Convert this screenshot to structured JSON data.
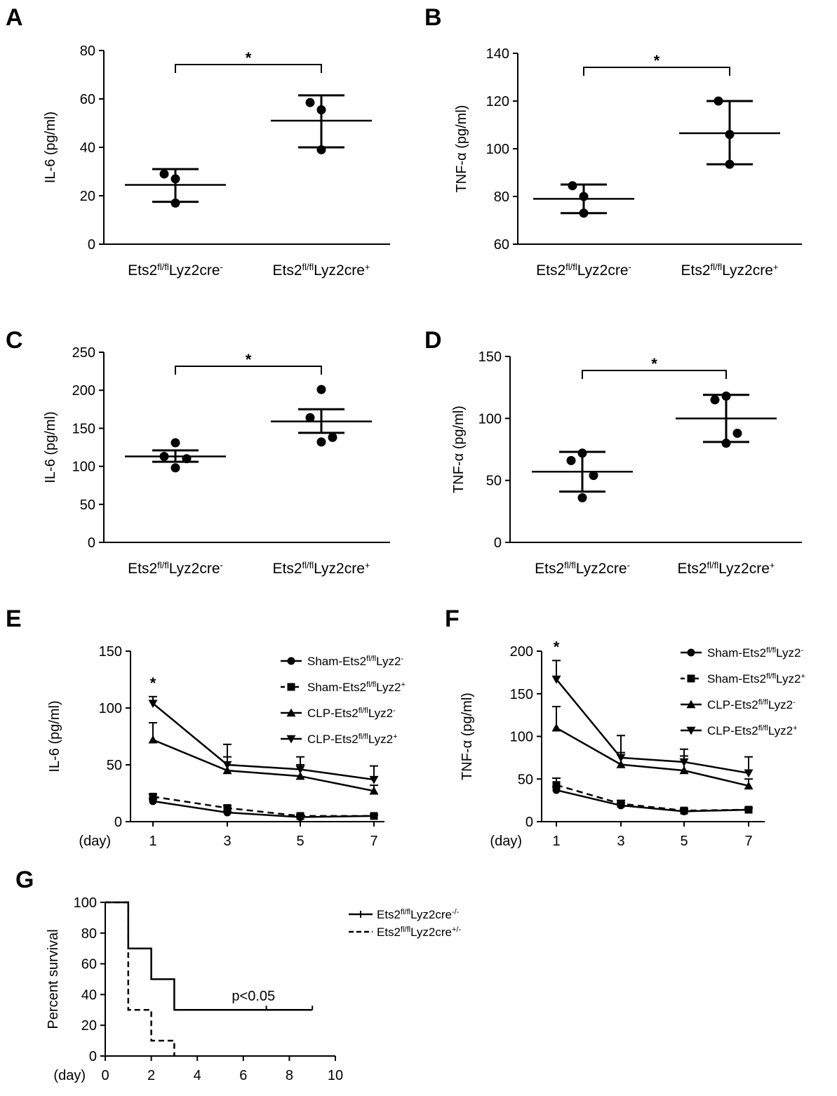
{
  "chart_data": [
    {
      "panel": "A",
      "type": "scatter",
      "ylabel": "IL-6 (pg/ml)",
      "ylim": [
        0,
        80
      ],
      "yticks": [
        0,
        20,
        40,
        60,
        80
      ],
      "categories": [
        {
          "base": "Ets2",
          "sup": "fl/fl",
          "rest": "Lyz2cre",
          "tail": "-"
        },
        {
          "base": "Ets2",
          "sup": "fl/fl",
          "rest": "Lyz2cre",
          "tail": "+"
        }
      ],
      "groups": [
        {
          "points": [
            17,
            27,
            29
          ],
          "mean": 24.5,
          "err_low": 17.5,
          "err_high": 31
        },
        {
          "points": [
            39,
            55.5,
            58.5
          ],
          "mean": 51,
          "err_low": 40,
          "err_high": 61.5
        }
      ],
      "annotation": "*"
    },
    {
      "panel": "B",
      "type": "scatter",
      "ylabel": "TNF-α (pg/ml)",
      "ylim": [
        60,
        140
      ],
      "yticks": [
        60,
        80,
        100,
        120,
        140
      ],
      "categories": [
        {
          "base": "Ets2",
          "sup": "fl/fl",
          "rest": "Lyz2cre",
          "tail": "-"
        },
        {
          "base": "Ets2",
          "sup": "fl/fl",
          "rest": "Lyz2cre",
          "tail": "+"
        }
      ],
      "groups": [
        {
          "points": [
            73,
            80,
            84.5
          ],
          "mean": 79,
          "err_low": 73,
          "err_high": 85
        },
        {
          "points": [
            93.5,
            106,
            120
          ],
          "mean": 106.5,
          "err_low": 93.5,
          "err_high": 120
        }
      ],
      "annotation": "*"
    },
    {
      "panel": "C",
      "type": "scatter",
      "ylabel": "IL-6 (pg/ml)",
      "ylim": [
        0,
        250
      ],
      "yticks": [
        0,
        50,
        100,
        150,
        200,
        250
      ],
      "categories": [
        {
          "base": "Ets2",
          "sup": "fl/fl",
          "rest": "Lyz2cre",
          "tail": "-"
        },
        {
          "base": "Ets2",
          "sup": "fl/fl",
          "rest": "Lyz2cre",
          "tail": "+"
        }
      ],
      "groups": [
        {
          "points": [
            98,
            110,
            113,
            131
          ],
          "mean": 113,
          "err_low": 106,
          "err_high": 121
        },
        {
          "points": [
            132,
            138,
            164,
            201
          ],
          "mean": 159,
          "err_low": 144,
          "err_high": 175
        }
      ],
      "annotation": "*"
    },
    {
      "panel": "D",
      "type": "scatter",
      "ylabel": "TNF-α (pg/ml)",
      "ylim": [
        0,
        150
      ],
      "yticks": [
        0,
        50,
        100,
        150
      ],
      "categories": [
        {
          "base": "Ets2",
          "sup": "fl/fl",
          "rest": "Lyz2cre",
          "tail": "-"
        },
        {
          "base": "Ets2",
          "sup": "fl/fl",
          "rest": "Lyz2cre",
          "tail": "+"
        }
      ],
      "groups": [
        {
          "points": [
            36,
            54,
            66,
            72
          ],
          "mean": 57,
          "err_low": 41,
          "err_high": 73
        },
        {
          "points": [
            80,
            88,
            115,
            118
          ],
          "mean": 100,
          "err_low": 81,
          "err_high": 119
        }
      ],
      "annotation": "*"
    },
    {
      "panel": "E",
      "type": "line",
      "ylabel": "IL-6 (pg/ml)",
      "xlabel": "(day)",
      "x": [
        1,
        3,
        5,
        7
      ],
      "xticks": [
        1,
        3,
        5,
        7
      ],
      "ylim": [
        0,
        150
      ],
      "yticks": [
        0,
        50,
        100,
        150
      ],
      "series": [
        {
          "name_base": "Sham-Ets2",
          "name_sup": "fl/fl",
          "name_rest": "Lyz2",
          "name_tail": "-",
          "marker": "circle",
          "dashed": false,
          "values": [
            18,
            8,
            4,
            5
          ],
          "errors": [
            2,
            1,
            1,
            1
          ]
        },
        {
          "name_base": "Sham-Ets2",
          "name_sup": "fl/fl",
          "name_rest": "Lyz2",
          "name_tail": "+",
          "marker": "square",
          "dashed": true,
          "values": [
            22,
            12,
            5,
            5
          ],
          "errors": [
            2,
            2,
            1,
            1
          ]
        },
        {
          "name_base": "CLP-Ets2",
          "name_sup": "fl/fl",
          "name_rest": "Lyz2",
          "name_tail": "-",
          "marker": "triangle-up",
          "dashed": false,
          "values": [
            72,
            45,
            40,
            27
          ],
          "errors": [
            15,
            12,
            10,
            5
          ]
        },
        {
          "name_base": "CLP-Ets2",
          "name_sup": "fl/fl",
          "name_rest": "Lyz2",
          "name_tail": "+",
          "marker": "triangle-down",
          "dashed": false,
          "values": [
            104,
            50,
            46,
            37
          ],
          "errors": [
            6,
            18,
            11,
            12
          ]
        }
      ],
      "annotation": "*",
      "legend": "top-right"
    },
    {
      "panel": "F",
      "type": "line",
      "ylabel": "TNF-α (pg/ml)",
      "xlabel": "(day)",
      "x": [
        1,
        3,
        5,
        7
      ],
      "xticks": [
        1,
        3,
        5,
        7
      ],
      "ylim": [
        0,
        200
      ],
      "yticks": [
        0,
        50,
        100,
        150,
        200
      ],
      "series": [
        {
          "name_base": "Sham-Ets2",
          "name_sup": "fl/fl",
          "name_rest": "Lyz2",
          "name_tail": "-",
          "marker": "circle",
          "dashed": false,
          "values": [
            37,
            19,
            12,
            14
          ],
          "errors": [
            4,
            3,
            2,
            2
          ]
        },
        {
          "name_base": "Sham-Ets2",
          "name_sup": "fl/fl",
          "name_rest": "Lyz2",
          "name_tail": "+",
          "marker": "square",
          "dashed": true,
          "values": [
            43,
            21,
            13,
            14
          ],
          "errors": [
            8,
            4,
            2,
            2
          ]
        },
        {
          "name_base": "CLP-Ets2",
          "name_sup": "fl/fl",
          "name_rest": "Lyz2",
          "name_tail": "-",
          "marker": "triangle-up",
          "dashed": false,
          "values": [
            110,
            67,
            60,
            42
          ],
          "errors": [
            25,
            14,
            17,
            8
          ]
        },
        {
          "name_base": "CLP-Ets2",
          "name_sup": "fl/fl",
          "name_rest": "Lyz2",
          "name_tail": "+",
          "marker": "triangle-down",
          "dashed": false,
          "values": [
            167,
            75,
            70,
            57
          ],
          "errors": [
            22,
            26,
            15,
            19
          ]
        }
      ],
      "annotation": "*",
      "legend": "top-right"
    },
    {
      "panel": "G",
      "type": "line",
      "ylabel": "Percent survival",
      "xlabel": "(day)",
      "xlim": [
        0,
        10
      ],
      "xticks": [
        0,
        2,
        4,
        6,
        8,
        10
      ],
      "ylim": [
        0,
        100
      ],
      "yticks": [
        0,
        20,
        40,
        60,
        80,
        100
      ],
      "series": [
        {
          "name_base": "Ets2",
          "name_sup": "fl/fl",
          "name_rest": "Lyz2cre",
          "name_tail": "-/-",
          "dashed": false,
          "steps": [
            [
              0,
              100
            ],
            [
              1,
              70
            ],
            [
              2,
              50
            ],
            [
              3,
              30
            ],
            [
              9,
              30
            ]
          ],
          "censored": [
            [
              7,
              30
            ],
            [
              9,
              30
            ]
          ]
        },
        {
          "name_base": "Ets2",
          "name_sup": "fl/fl",
          "name_rest": "Lyz2cre",
          "name_tail": "+/-",
          "dashed": true,
          "steps": [
            [
              0,
              100
            ],
            [
              1,
              30
            ],
            [
              2,
              10
            ],
            [
              3,
              0
            ]
          ],
          "censored": []
        }
      ],
      "annotation": "p<0.05",
      "legend": "right"
    }
  ]
}
